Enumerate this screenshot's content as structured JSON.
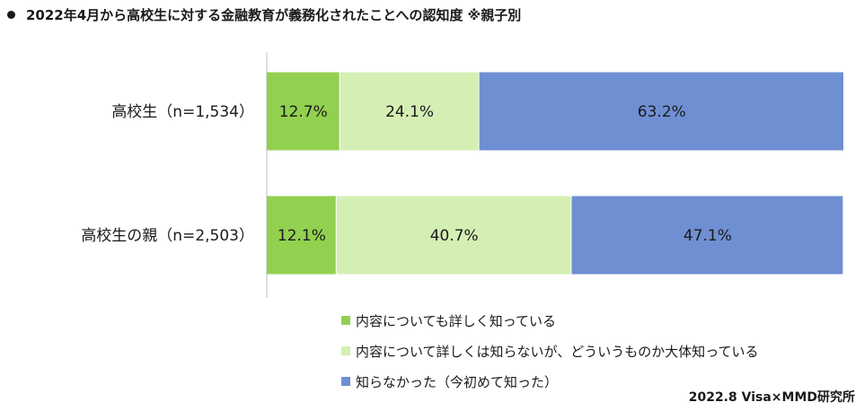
{
  "title": "2022年4月から高校生に対する金融教育が義務化されたことへの認知度 ※親子別",
  "source": "2022.8 Visa×MMD研究所",
  "chart_data": {
    "type": "bar",
    "orientation": "horizontal",
    "stacked": true,
    "normalized": true,
    "categories": [
      "高校生（n=1,534）",
      "高校生の親（n=2,503）"
    ],
    "series": [
      {
        "name": "内容についても詳しく知っている",
        "color": "#92d050",
        "values": [
          12.7,
          12.1
        ],
        "labels": [
          "12.7%",
          "12.1%"
        ]
      },
      {
        "name": "内容について詳しくは知らないが、どういうものか大体知っている",
        "color": "#d4efb4",
        "values": [
          24.1,
          40.7
        ],
        "labels": [
          "24.1%",
          "40.7%"
        ]
      },
      {
        "name": "知らなかった（今初めて知った）",
        "color": "#6f8fd3",
        "values": [
          63.2,
          47.1
        ],
        "labels": [
          "63.2%",
          "47.1%"
        ]
      }
    ],
    "xlim": [
      0,
      100
    ],
    "grid": false,
    "legend_position": "bottom"
  }
}
